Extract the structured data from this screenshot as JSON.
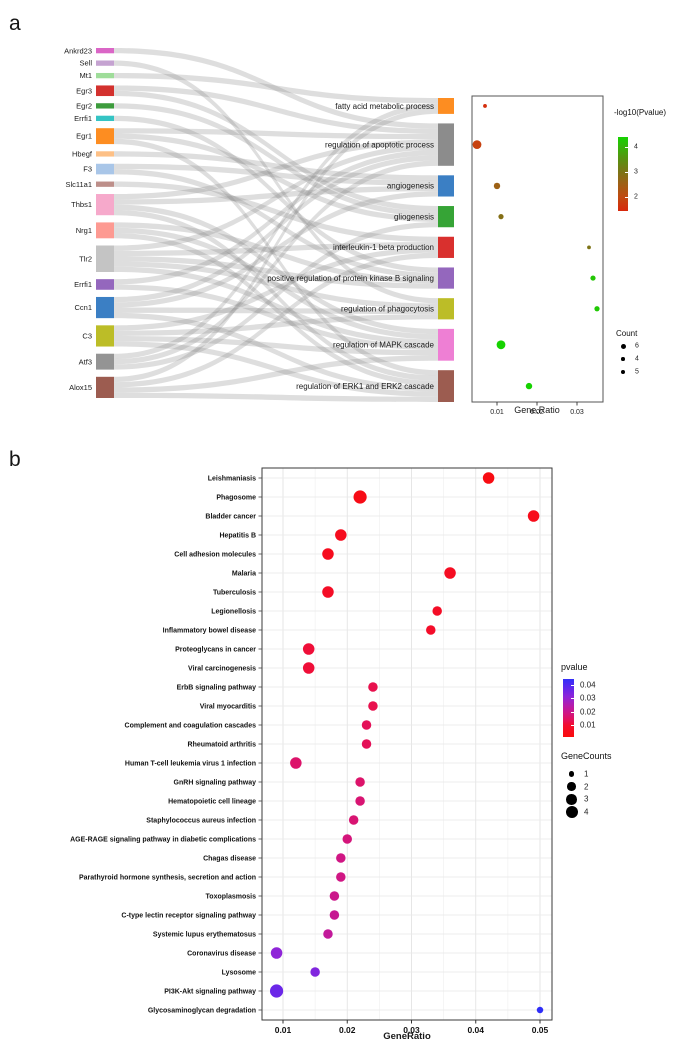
{
  "figure_labels": {
    "panel_a": "a",
    "panel_b": "b"
  },
  "chart_data": [
    {
      "id": "go_gene_sankey",
      "type": "sankey",
      "panel": "a",
      "genes": [
        "Ankrd23",
        "Sell",
        "Mt1",
        "Egr3",
        "Egr2",
        "Errfi1",
        "Egr1",
        "Hbegf",
        "F3",
        "Slc11a1",
        "Thbs1",
        "Nrg1",
        "Tlr2",
        "Errfi1",
        "Ccn1",
        "C3",
        "Atf3",
        "Alox15"
      ],
      "gene_colors": [
        "#da66c6",
        "#c5a3d1",
        "#9fdd9a",
        "#d3312e",
        "#3d9c3d",
        "#35c4c4",
        "#fd8d21",
        "#fdc086",
        "#a9c6e8",
        "#bd8f8a",
        "#f6a9cb",
        "#fd9a92",
        "#c4c4c4",
        "#9467bd",
        "#3b7fc4",
        "#bcbd27",
        "#949494",
        "#9c5c50"
      ],
      "terms": [
        "fatty acid metabolic process",
        "regulation of apoptotic process",
        "angiogenesis",
        "gliogenesis",
        "interleukin-1 beta production",
        "positive regulation of protein kinase B signaling",
        "regulation of phagocytosis",
        "regulation of MAPK cascade",
        "regulation of ERK1 and ERK2 cascade"
      ],
      "term_colors": [
        "#fd8d21",
        "#8c8c8c",
        "#3b7fc4",
        "#36a436",
        "#d9302e",
        "#9467bd",
        "#bcbd27",
        "#ee7fd4",
        "#9c5c50"
      ],
      "links": [
        [
          0,
          1
        ],
        [
          1,
          6
        ],
        [
          2,
          0
        ],
        [
          3,
          1
        ],
        [
          3,
          3
        ],
        [
          4,
          3
        ],
        [
          5,
          5
        ],
        [
          6,
          1
        ],
        [
          6,
          3
        ],
        [
          6,
          8
        ],
        [
          7,
          2
        ],
        [
          8,
          2
        ],
        [
          8,
          5
        ],
        [
          9,
          4
        ],
        [
          10,
          1
        ],
        [
          10,
          2
        ],
        [
          10,
          7
        ],
        [
          10,
          8
        ],
        [
          11,
          5
        ],
        [
          11,
          7
        ],
        [
          11,
          8
        ],
        [
          12,
          1
        ],
        [
          12,
          4
        ],
        [
          12,
          5
        ],
        [
          12,
          6
        ],
        [
          12,
          7
        ],
        [
          13,
          1
        ],
        [
          13,
          7
        ],
        [
          14,
          1
        ],
        [
          14,
          2
        ],
        [
          14,
          6
        ],
        [
          14,
          8
        ],
        [
          15,
          4
        ],
        [
          15,
          6
        ],
        [
          15,
          7
        ],
        [
          15,
          8
        ],
        [
          16,
          0
        ],
        [
          16,
          1
        ],
        [
          16,
          3
        ],
        [
          17,
          0
        ],
        [
          17,
          4
        ],
        [
          17,
          7
        ],
        [
          17,
          8
        ]
      ]
    },
    {
      "id": "go_dotplot",
      "type": "scatter",
      "panel": "a",
      "xlabel": "Gene.Ratio",
      "x_ticks": [
        0.01,
        0.02,
        0.03
      ],
      "xlim": [
        0.0037,
        0.0365
      ],
      "points": [
        {
          "term": "fatty acid metabolic process",
          "gene_ratio": 0.007,
          "neg_log10_pvalue": 1.55,
          "count": 3
        },
        {
          "term": "regulation of apoptotic process",
          "gene_ratio": 0.005,
          "neg_log10_pvalue": 1.85,
          "count": 6
        },
        {
          "term": "angiogenesis",
          "gene_ratio": 0.01,
          "neg_log10_pvalue": 2.55,
          "count": 5
        },
        {
          "term": "gliogenesis",
          "gene_ratio": 0.011,
          "neg_log10_pvalue": 2.9,
          "count": 4
        },
        {
          "term": "interleukin-1 beta production",
          "gene_ratio": 0.033,
          "neg_log10_pvalue": 3.0,
          "count": 3
        },
        {
          "term": "positive regulation of protein kinase B signaling",
          "gene_ratio": 0.034,
          "neg_log10_pvalue": 4.25,
          "count": 4
        },
        {
          "term": "regulation of phagocytosis",
          "gene_ratio": 0.035,
          "neg_log10_pvalue": 4.3,
          "count": 4
        },
        {
          "term": "regulation of MAPK cascade",
          "gene_ratio": 0.011,
          "neg_log10_pvalue": 4.55,
          "count": 6
        },
        {
          "term": "regulation of ERK1 and ERK2 cascade",
          "gene_ratio": 0.018,
          "neg_log10_pvalue": 4.45,
          "count": 5
        }
      ],
      "size_map": {
        "3": 3.8,
        "4": 5.2,
        "5": 6.4,
        "6": 8.8
      },
      "color_scale": {
        "stops": [
          [
            1.45,
            "#d8280c"
          ],
          [
            2.0,
            "#c04a10"
          ],
          [
            2.6,
            "#9a6316"
          ],
          [
            3.0,
            "#7d7316"
          ],
          [
            3.6,
            "#53960f"
          ],
          [
            4.2,
            "#27c306"
          ],
          [
            4.45,
            "#16d200"
          ]
        ]
      },
      "color_legend": {
        "title": "-log10(Pvalue)",
        "tick_values": [
          4,
          3,
          2
        ],
        "domain": [
          4.4,
          1.45
        ],
        "gradient": [
          {
            "color": "#16d200",
            "pos": 0
          },
          {
            "color": "#27c306",
            "pos": 7
          },
          {
            "color": "#53960f",
            "pos": 27
          },
          {
            "color": "#7d7316",
            "pos": 48
          },
          {
            "color": "#9a6316",
            "pos": 61
          },
          {
            "color": "#c04a10",
            "pos": 81
          },
          {
            "color": "#d8280c",
            "pos": 100
          }
        ]
      },
      "size_legend": {
        "title": "Count",
        "entries": [
          {
            "label": "6",
            "d": 5.0
          },
          {
            "label": "4",
            "d": 3.6
          },
          {
            "label": "5",
            "d": 4.3
          }
        ]
      }
    },
    {
      "id": "kegg_bubble",
      "type": "scatter",
      "panel": "b",
      "xlabel": "GeneRatio",
      "x_ticks": [
        0.01,
        0.02,
        0.03,
        0.04,
        0.05
      ],
      "xlim": [
        0.0067,
        0.0519
      ],
      "rows": [
        {
          "pathway": "Leishmaniasis",
          "gene_ratio": 0.042,
          "pvalue": 0.003,
          "gene_counts": 3
        },
        {
          "pathway": "Phagosome",
          "gene_ratio": 0.022,
          "pvalue": 0.004,
          "gene_counts": 4
        },
        {
          "pathway": "Bladder cancer",
          "gene_ratio": 0.049,
          "pvalue": 0.005,
          "gene_counts": 3
        },
        {
          "pathway": "Hepatitis B",
          "gene_ratio": 0.019,
          "pvalue": 0.006,
          "gene_counts": 3
        },
        {
          "pathway": "Cell adhesion molecules",
          "gene_ratio": 0.017,
          "pvalue": 0.006,
          "gene_counts": 3
        },
        {
          "pathway": "Malaria",
          "gene_ratio": 0.036,
          "pvalue": 0.007,
          "gene_counts": 3
        },
        {
          "pathway": "Tuberculosis",
          "gene_ratio": 0.017,
          "pvalue": 0.008,
          "gene_counts": 3
        },
        {
          "pathway": "Legionellosis",
          "gene_ratio": 0.034,
          "pvalue": 0.008,
          "gene_counts": 2
        },
        {
          "pathway": "Inflammatory bowel disease",
          "gene_ratio": 0.033,
          "pvalue": 0.009,
          "gene_counts": 2
        },
        {
          "pathway": "Proteoglycans in cancer",
          "gene_ratio": 0.014,
          "pvalue": 0.011,
          "gene_counts": 3
        },
        {
          "pathway": "Viral carcinogenesis",
          "gene_ratio": 0.014,
          "pvalue": 0.011,
          "gene_counts": 3
        },
        {
          "pathway": "ErbB signaling pathway",
          "gene_ratio": 0.024,
          "pvalue": 0.013,
          "gene_counts": 2
        },
        {
          "pathway": "Viral myocarditis",
          "gene_ratio": 0.024,
          "pvalue": 0.013,
          "gene_counts": 2
        },
        {
          "pathway": "Complement and coagulation cascades",
          "gene_ratio": 0.023,
          "pvalue": 0.014,
          "gene_counts": 2
        },
        {
          "pathway": "Rheumatoid arthritis",
          "gene_ratio": 0.023,
          "pvalue": 0.014,
          "gene_counts": 2
        },
        {
          "pathway": "Human T-cell leukemia virus 1 infection",
          "gene_ratio": 0.012,
          "pvalue": 0.016,
          "gene_counts": 3
        },
        {
          "pathway": "GnRH signaling pathway",
          "gene_ratio": 0.022,
          "pvalue": 0.016,
          "gene_counts": 2
        },
        {
          "pathway": "Hematopoietic cell lineage",
          "gene_ratio": 0.022,
          "pvalue": 0.017,
          "gene_counts": 2
        },
        {
          "pathway": "Staphylococcus aureus infection",
          "gene_ratio": 0.021,
          "pvalue": 0.017,
          "gene_counts": 2
        },
        {
          "pathway": "AGE-RAGE signaling pathway in diabetic complications",
          "gene_ratio": 0.02,
          "pvalue": 0.018,
          "gene_counts": 2
        },
        {
          "pathway": "Chagas disease",
          "gene_ratio": 0.019,
          "pvalue": 0.019,
          "gene_counts": 2
        },
        {
          "pathway": "Parathyroid hormone synthesis, secretion and action",
          "gene_ratio": 0.019,
          "pvalue": 0.019,
          "gene_counts": 2
        },
        {
          "pathway": "Toxoplasmosis",
          "gene_ratio": 0.018,
          "pvalue": 0.02,
          "gene_counts": 2
        },
        {
          "pathway": "C-type lectin receptor signaling pathway",
          "gene_ratio": 0.018,
          "pvalue": 0.021,
          "gene_counts": 2
        },
        {
          "pathway": "Systemic lupus erythematosus",
          "gene_ratio": 0.017,
          "pvalue": 0.022,
          "gene_counts": 2
        },
        {
          "pathway": "Coronavirus disease",
          "gene_ratio": 0.009,
          "pvalue": 0.031,
          "gene_counts": 3
        },
        {
          "pathway": "Lysosome",
          "gene_ratio": 0.015,
          "pvalue": 0.033,
          "gene_counts": 2
        },
        {
          "pathway": "PI3K-Akt signaling pathway",
          "gene_ratio": 0.009,
          "pvalue": 0.036,
          "gene_counts": 4
        },
        {
          "pathway": "Glycosaminoglycan degradation",
          "gene_ratio": 0.05,
          "pvalue": 0.046,
          "gene_counts": 1
        }
      ],
      "size_map": {
        "1": 6.5,
        "2": 9.5,
        "3": 11.5,
        "4": 13.2
      },
      "color_scale": {
        "stops": [
          [
            0.003,
            "#f80c12"
          ],
          [
            0.01,
            "#f30d2e"
          ],
          [
            0.014,
            "#e41158"
          ],
          [
            0.019,
            "#d01684"
          ],
          [
            0.024,
            "#b81ba8"
          ],
          [
            0.031,
            "#8f25d8"
          ],
          [
            0.038,
            "#5c28ee"
          ],
          [
            0.046,
            "#2f2df8"
          ]
        ]
      },
      "color_legend": {
        "title": "pvalue",
        "tick_values": [
          0.04,
          0.03,
          0.02,
          0.01
        ],
        "tick_labels": [
          "0.04",
          "0.03",
          "0.02",
          "0.01"
        ],
        "domain": [
          0.0442,
          0.0014
        ],
        "gradient": [
          {
            "color": "#3230f8",
            "pos": 0
          },
          {
            "color": "#5c28ee",
            "pos": 14
          },
          {
            "color": "#8f25d8",
            "pos": 31
          },
          {
            "color": "#b81ba8",
            "pos": 47
          },
          {
            "color": "#d01684",
            "pos": 59
          },
          {
            "color": "#e41158",
            "pos": 71
          },
          {
            "color": "#f30d2e",
            "pos": 80
          },
          {
            "color": "#f80c12",
            "pos": 96
          },
          {
            "color": "#fb0b0b",
            "pos": 100
          }
        ]
      },
      "size_legend": {
        "title": "GeneCounts",
        "entries": [
          {
            "label": "1",
            "d": 5.5
          },
          {
            "label": "2",
            "d": 8.5
          },
          {
            "label": "3",
            "d": 10.5
          },
          {
            "label": "4",
            "d": 12.0
          }
        ]
      }
    }
  ]
}
